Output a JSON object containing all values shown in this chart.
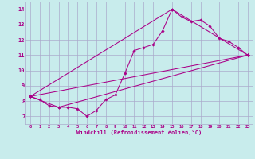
{
  "xlabel": "Windchill (Refroidissement éolien,°C)",
  "bg_color": "#c8ecec",
  "grid_color": "#aaaacc",
  "line_color": "#aa0088",
  "xlim": [
    -0.5,
    23.5
  ],
  "ylim": [
    6.5,
    14.5
  ],
  "xticks": [
    0,
    1,
    2,
    3,
    4,
    5,
    6,
    7,
    8,
    9,
    10,
    11,
    12,
    13,
    14,
    15,
    16,
    17,
    18,
    19,
    20,
    21,
    22,
    23
  ],
  "yticks": [
    7,
    8,
    9,
    10,
    11,
    12,
    13,
    14
  ],
  "curve1_x": [
    0,
    1,
    2,
    3,
    4,
    5,
    6,
    7,
    8,
    9,
    10,
    11,
    12,
    13,
    14,
    15,
    16,
    17,
    18,
    19,
    20,
    21,
    22,
    23
  ],
  "curve1_y": [
    8.3,
    8.1,
    7.7,
    7.6,
    7.6,
    7.5,
    7.0,
    7.4,
    8.1,
    8.4,
    9.8,
    11.3,
    11.5,
    11.7,
    12.6,
    14.0,
    13.5,
    13.2,
    13.3,
    12.9,
    12.1,
    11.9,
    11.5,
    11.0
  ],
  "curve2_x": [
    0,
    3,
    23
  ],
  "curve2_y": [
    8.3,
    7.6,
    11.0
  ],
  "curve3_x": [
    0,
    15,
    23
  ],
  "curve3_y": [
    8.3,
    14.0,
    11.0
  ],
  "curve4_x": [
    0,
    23
  ],
  "curve4_y": [
    8.3,
    11.0
  ]
}
